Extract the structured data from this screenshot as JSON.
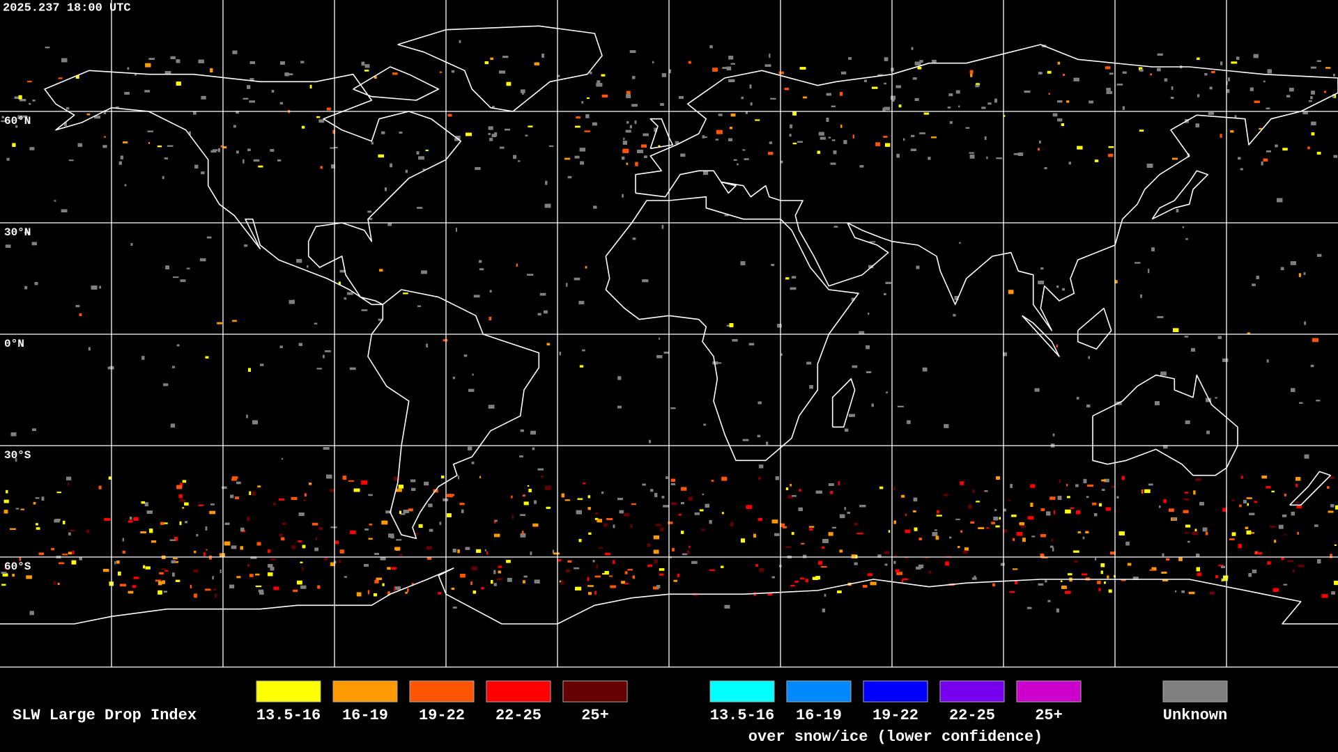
{
  "header": {
    "timestamp": "2025.237 18:00 UTC"
  },
  "map": {
    "lat_labels": [
      "60°N",
      "30°N",
      "0°N",
      "30°S",
      "60°S"
    ]
  },
  "legend": {
    "title": "SLW Large Drop Index",
    "groups": [
      {
        "entries": [
          {
            "label": "13.5-16",
            "color": "#ffff00"
          },
          {
            "label": "16-19",
            "color": "#ff9900"
          },
          {
            "label": "19-22",
            "color": "#ff5500"
          },
          {
            "label": "22-25",
            "color": "#ff0000"
          },
          {
            "label": "25+",
            "color": "#660000"
          }
        ]
      },
      {
        "entries": [
          {
            "label": "13.5-16",
            "color": "#00ffff"
          },
          {
            "label": "16-19",
            "color": "#0088ff"
          },
          {
            "label": "19-22",
            "color": "#0000ff"
          },
          {
            "label": "22-25",
            "color": "#7700ee"
          },
          {
            "label": "25+",
            "color": "#cc00cc"
          }
        ],
        "caption": "over snow/ice (lower confidence)"
      },
      {
        "entries": [
          {
            "label": "Unknown",
            "color": "#808080"
          }
        ]
      }
    ]
  }
}
